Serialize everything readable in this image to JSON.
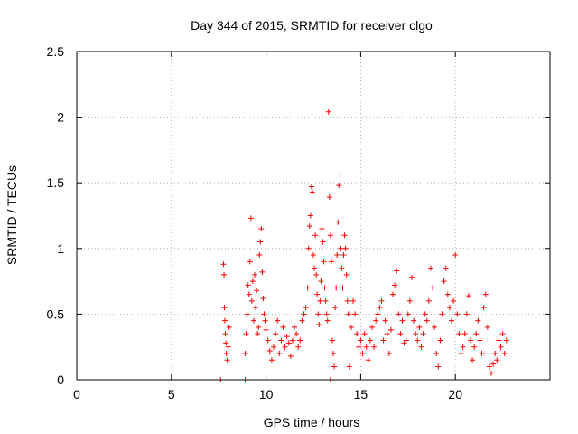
{
  "chart_data": {
    "type": "scatter",
    "title": "Day 344 of 2015, SRMTID for receiver clgo",
    "xlabel": "GPS time / hours",
    "ylabel": "SRMTID / TECUs",
    "xlim": [
      0,
      25
    ],
    "ylim": [
      0,
      2.5
    ],
    "x_ticks": [
      0,
      5,
      10,
      15,
      20
    ],
    "x_tick_labels": [
      "0",
      "5",
      "10",
      "15",
      "20"
    ],
    "y_ticks": [
      0,
      0.5,
      1,
      1.5,
      2,
      2.5
    ],
    "y_tick_labels": [
      "0",
      "0.5",
      "1",
      "1.5",
      "2",
      "2.5"
    ],
    "grid": true,
    "marker": "+",
    "color": "#ff0000",
    "series": [
      {
        "points": [
          [
            7.6,
            0.0
          ],
          [
            8.9,
            0.0
          ],
          [
            13.4,
            0.0
          ],
          [
            7.75,
            0.88
          ],
          [
            7.78,
            0.8
          ],
          [
            7.8,
            0.55
          ],
          [
            7.82,
            0.45
          ],
          [
            7.85,
            0.35
          ],
          [
            7.88,
            0.28
          ],
          [
            7.9,
            0.2
          ],
          [
            7.95,
            0.15
          ],
          [
            8.0,
            0.25
          ],
          [
            8.05,
            0.4
          ],
          [
            8.9,
            0.2
          ],
          [
            8.95,
            0.35
          ],
          [
            9.0,
            0.5
          ],
          [
            9.05,
            0.72
          ],
          [
            9.1,
            0.65
          ],
          [
            9.15,
            0.9
          ],
          [
            9.2,
            1.23
          ],
          [
            9.25,
            0.6
          ],
          [
            9.3,
            0.75
          ],
          [
            9.35,
            0.45
          ],
          [
            9.4,
            0.8
          ],
          [
            9.45,
            0.55
          ],
          [
            9.5,
            0.68
          ],
          [
            9.55,
            0.35
          ],
          [
            9.6,
            0.4
          ],
          [
            9.65,
            0.95
          ],
          [
            9.7,
            1.05
          ],
          [
            9.75,
            1.15
          ],
          [
            9.8,
            0.82
          ],
          [
            9.85,
            0.62
          ],
          [
            9.9,
            0.5
          ],
          [
            9.95,
            0.45
          ],
          [
            10.0,
            0.38
          ],
          [
            10.1,
            0.3
          ],
          [
            10.2,
            0.22
          ],
          [
            10.3,
            0.15
          ],
          [
            10.4,
            0.25
          ],
          [
            10.5,
            0.35
          ],
          [
            10.6,
            0.45
          ],
          [
            10.7,
            0.2
          ],
          [
            10.8,
            0.3
          ],
          [
            10.9,
            0.4
          ],
          [
            11.0,
            0.25
          ],
          [
            11.1,
            0.33
          ],
          [
            11.2,
            0.28
          ],
          [
            11.3,
            0.18
          ],
          [
            11.4,
            0.3
          ],
          [
            11.5,
            0.4
          ],
          [
            11.6,
            0.35
          ],
          [
            11.7,
            0.25
          ],
          [
            11.8,
            0.3
          ],
          [
            11.9,
            0.45
          ],
          [
            12.0,
            0.5
          ],
          [
            12.1,
            0.55
          ],
          [
            12.2,
            0.7
          ],
          [
            12.25,
            1.0
          ],
          [
            12.3,
            1.17
          ],
          [
            12.35,
            1.25
          ],
          [
            12.4,
            1.47
          ],
          [
            12.45,
            1.43
          ],
          [
            12.5,
            0.95
          ],
          [
            12.55,
            0.85
          ],
          [
            12.6,
            1.1
          ],
          [
            12.65,
            0.8
          ],
          [
            12.7,
            0.65
          ],
          [
            12.75,
            0.5
          ],
          [
            12.8,
            0.42
          ],
          [
            12.85,
            0.6
          ],
          [
            12.9,
            0.75
          ],
          [
            12.95,
            1.15
          ],
          [
            13.0,
            1.05
          ],
          [
            13.05,
            0.9
          ],
          [
            13.1,
            0.7
          ],
          [
            13.15,
            0.6
          ],
          [
            13.2,
            0.5
          ],
          [
            13.25,
            0.45
          ],
          [
            13.3,
            2.04
          ],
          [
            13.35,
            1.39
          ],
          [
            13.4,
            1.1
          ],
          [
            13.45,
            0.9
          ],
          [
            13.5,
            0.3
          ],
          [
            13.55,
            0.2
          ],
          [
            13.6,
            0.1
          ],
          [
            13.65,
            0.55
          ],
          [
            13.7,
            0.7
          ],
          [
            13.75,
            0.95
          ],
          [
            13.8,
            1.2
          ],
          [
            13.85,
            1.48
          ],
          [
            13.9,
            1.56
          ],
          [
            13.95,
            1.0
          ],
          [
            14.0,
            0.85
          ],
          [
            14.05,
            0.7
          ],
          [
            14.1,
            0.95
          ],
          [
            14.15,
            1.1
          ],
          [
            14.2,
            1.0
          ],
          [
            14.25,
            0.8
          ],
          [
            14.3,
            0.6
          ],
          [
            14.35,
            0.5
          ],
          [
            14.4,
            0.1
          ],
          [
            14.5,
            0.4
          ],
          [
            14.6,
            0.6
          ],
          [
            14.7,
            0.5
          ],
          [
            14.8,
            0.35
          ],
          [
            14.9,
            0.25
          ],
          [
            15.0,
            0.3
          ],
          [
            15.1,
            0.2
          ],
          [
            15.2,
            0.35
          ],
          [
            15.3,
            0.25
          ],
          [
            15.4,
            0.15
          ],
          [
            15.5,
            0.3
          ],
          [
            15.6,
            0.4
          ],
          [
            15.7,
            0.25
          ],
          [
            15.8,
            0.45
          ],
          [
            15.9,
            0.5
          ],
          [
            16.0,
            0.55
          ],
          [
            16.1,
            0.6
          ],
          [
            16.2,
            0.3
          ],
          [
            16.3,
            0.45
          ],
          [
            16.4,
            0.35
          ],
          [
            16.5,
            0.2
          ],
          [
            16.6,
            0.38
          ],
          [
            16.7,
            0.65
          ],
          [
            16.8,
            0.72
          ],
          [
            16.9,
            0.83
          ],
          [
            17.0,
            0.5
          ],
          [
            17.1,
            0.35
          ],
          [
            17.2,
            0.45
          ],
          [
            17.3,
            0.28
          ],
          [
            17.4,
            0.3
          ],
          [
            17.5,
            0.5
          ],
          [
            17.6,
            0.6
          ],
          [
            17.7,
            0.78
          ],
          [
            17.8,
            0.45
          ],
          [
            17.9,
            0.35
          ],
          [
            18.0,
            0.3
          ],
          [
            18.1,
            0.4
          ],
          [
            18.2,
            0.25
          ],
          [
            18.3,
            0.35
          ],
          [
            18.4,
            0.5
          ],
          [
            18.5,
            0.45
          ],
          [
            18.6,
            0.6
          ],
          [
            18.7,
            0.85
          ],
          [
            18.8,
            0.7
          ],
          [
            18.9,
            0.4
          ],
          [
            19.0,
            0.2
          ],
          [
            19.1,
            0.1
          ],
          [
            19.2,
            0.3
          ],
          [
            19.3,
            0.5
          ],
          [
            19.4,
            0.75
          ],
          [
            19.5,
            0.85
          ],
          [
            19.6,
            0.65
          ],
          [
            19.7,
            0.55
          ],
          [
            19.8,
            0.45
          ],
          [
            19.9,
            0.6
          ],
          [
            20.0,
            0.95
          ],
          [
            20.1,
            0.5
          ],
          [
            20.2,
            0.35
          ],
          [
            20.3,
            0.2
          ],
          [
            20.4,
            0.25
          ],
          [
            20.5,
            0.35
          ],
          [
            20.6,
            0.5
          ],
          [
            20.7,
            0.64
          ],
          [
            20.8,
            0.3
          ],
          [
            20.9,
            0.15
          ],
          [
            21.0,
            0.25
          ],
          [
            21.1,
            0.35
          ],
          [
            21.2,
            0.45
          ],
          [
            21.3,
            0.3
          ],
          [
            21.4,
            0.2
          ],
          [
            21.5,
            0.55
          ],
          [
            21.6,
            0.65
          ],
          [
            21.7,
            0.4
          ],
          [
            21.8,
            0.1
          ],
          [
            21.9,
            0.05
          ],
          [
            22.0,
            0.12
          ],
          [
            22.1,
            0.2
          ],
          [
            22.2,
            0.15
          ],
          [
            22.3,
            0.3
          ],
          [
            22.4,
            0.25
          ],
          [
            22.5,
            0.35
          ],
          [
            22.6,
            0.2
          ],
          [
            22.7,
            0.3
          ]
        ]
      }
    ]
  }
}
